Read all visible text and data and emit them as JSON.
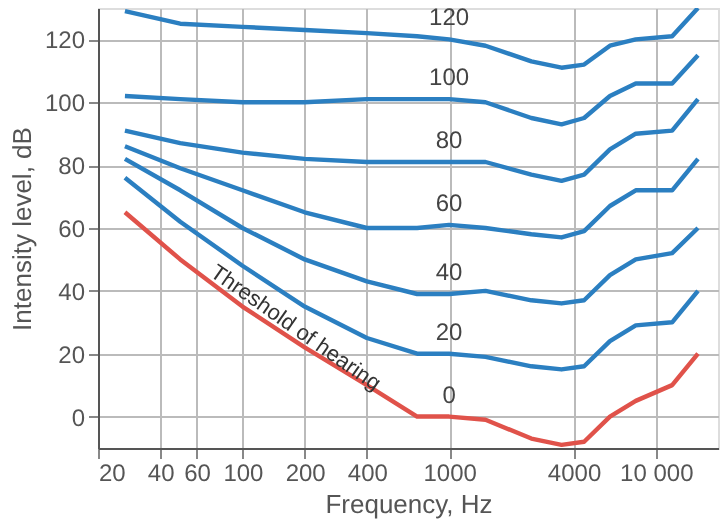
{
  "chart_data": {
    "type": "line",
    "xlabel": "Frequency, Hz",
    "ylabel": "Intensity level, dB",
    "log": "x",
    "grid": true,
    "legend": false,
    "marker": "none",
    "line_style": "solid",
    "x": [
      27,
      50,
      100,
      200,
      400,
      700,
      1000,
      1500,
      2500,
      3500,
      4500,
      6000,
      8000,
      12000,
      16000
    ],
    "xlim": [
      20,
      20000
    ],
    "xticks": [
      20,
      40,
      60,
      100,
      200,
      400,
      1000,
      4000,
      {
        "value": 10000,
        "label": "10 000"
      }
    ],
    "ylim": [
      -10,
      130
    ],
    "yticks": [
      0,
      20,
      40,
      60,
      80,
      100,
      120
    ],
    "series": [
      {
        "name": "0",
        "color": "#e0524a",
        "values": [
          65,
          50,
          35,
          22,
          10,
          0,
          0,
          -1,
          -7,
          -9,
          -8,
          0,
          5,
          10,
          20
        ]
      },
      {
        "name": "20",
        "color": "#2b7fc1",
        "values": [
          76,
          62,
          48,
          35,
          25,
          20,
          20,
          19,
          16,
          15,
          16,
          24,
          29,
          30,
          40
        ]
      },
      {
        "name": "40",
        "color": "#2b7fc1",
        "values": [
          82,
          72,
          60,
          50,
          43,
          39,
          39,
          40,
          37,
          36,
          37,
          45,
          50,
          52,
          60
        ]
      },
      {
        "name": "60",
        "color": "#2b7fc1",
        "values": [
          86,
          79,
          72,
          65,
          60,
          60,
          61,
          60,
          58,
          57,
          59,
          67,
          72,
          72,
          82
        ]
      },
      {
        "name": "80",
        "color": "#2b7fc1",
        "values": [
          91,
          87,
          84,
          82,
          81,
          81,
          81,
          81,
          77,
          75,
          77,
          85,
          90,
          91,
          101
        ]
      },
      {
        "name": "100",
        "color": "#2b7fc1",
        "values": [
          102,
          101,
          100,
          100,
          101,
          101,
          101,
          100,
          95,
          93,
          95,
          102,
          106,
          106,
          115
        ]
      },
      {
        "name": "120",
        "color": "#2b7fc1",
        "values": [
          129,
          125,
          124,
          123,
          122,
          121,
          120,
          118,
          113,
          111,
          112,
          118,
          120,
          121,
          130
        ]
      }
    ],
    "annotations": [
      {
        "text": "Threshold of hearing",
        "x": 180,
        "y": 28
      }
    ]
  }
}
